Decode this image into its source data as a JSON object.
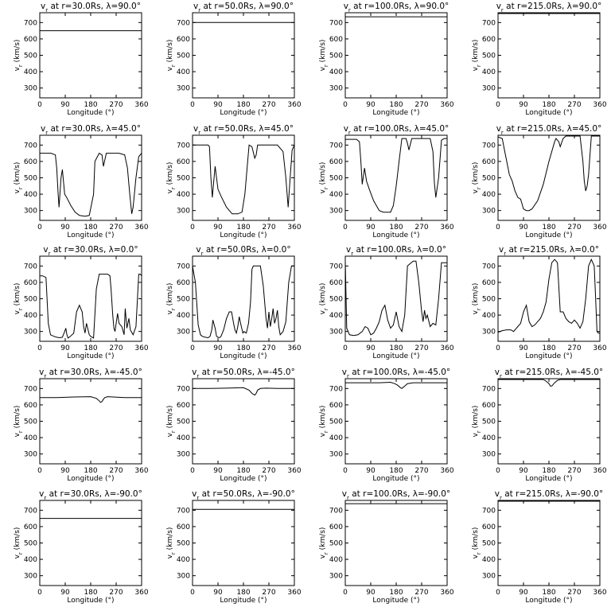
{
  "chart_data": {
    "type": "line",
    "xlabel": "Longitude (°)",
    "ylabel": "v",
    "ylabel_sub": "r",
    "ylabel_units": " (km/s)",
    "xlim": [
      0,
      360
    ],
    "ylim": [
      240,
      760
    ],
    "xticks": [
      "0",
      "90",
      "180",
      "270",
      "360"
    ],
    "yticks": [
      "300",
      "400",
      "500",
      "600",
      "700"
    ],
    "title_prefix": "v",
    "title_sub": "r",
    "title_at": " at r=",
    "title_lambda": "Rs, λ=",
    "title_deg": "°",
    "radii": [
      "30.0",
      "50.0",
      "100.0",
      "215.0"
    ],
    "latitudes": [
      "90.0",
      "45.0",
      "0.0",
      "-45.0",
      "-90.0"
    ],
    "panels": [
      [
        {
          "x": [
            0,
            360
          ],
          "y": [
            650,
            650
          ]
        },
        {
          "x": [
            0,
            360
          ],
          "y": [
            700,
            700
          ]
        },
        {
          "x": [
            0,
            360
          ],
          "y": [
            735,
            735
          ]
        },
        {
          "x": [
            0,
            360
          ],
          "y": [
            755,
            755
          ]
        }
      ],
      [
        {
          "x": [
            0,
            20,
            40,
            55,
            60,
            65,
            68,
            75,
            80,
            88,
            95,
            110,
            125,
            140,
            160,
            175,
            190,
            195,
            210,
            220,
            225,
            235,
            245,
            280,
            300,
            310,
            318,
            325,
            330,
            340,
            350,
            360
          ],
          "y": [
            650,
            650,
            650,
            640,
            560,
            400,
            320,
            500,
            550,
            400,
            380,
            330,
            290,
            270,
            265,
            270,
            400,
            600,
            650,
            640,
            570,
            650,
            650,
            650,
            640,
            560,
            400,
            280,
            320,
            500,
            630,
            650
          ]
        },
        {
          "x": [
            0,
            30,
            55,
            60,
            65,
            70,
            75,
            80,
            90,
            100,
            120,
            140,
            160,
            175,
            185,
            195,
            200,
            210,
            220,
            225,
            230,
            240,
            260,
            300,
            320,
            330,
            338,
            345,
            352,
            360
          ],
          "y": [
            700,
            700,
            700,
            690,
            500,
            380,
            480,
            570,
            430,
            390,
            320,
            280,
            280,
            290,
            400,
            600,
            700,
            690,
            620,
            640,
            700,
            700,
            700,
            700,
            660,
            500,
            320,
            500,
            670,
            700
          ]
        },
        {
          "x": [
            0,
            20,
            40,
            50,
            55,
            60,
            68,
            75,
            85,
            100,
            120,
            135,
            150,
            160,
            170,
            180,
            190,
            200,
            215,
            220,
            225,
            235,
            245,
            260,
            285,
            300,
            310,
            315,
            320,
            330,
            340,
            350,
            360
          ],
          "y": [
            735,
            735,
            735,
            720,
            600,
            460,
            560,
            480,
            430,
            360,
            300,
            290,
            290,
            290,
            330,
            450,
            600,
            740,
            740,
            710,
            670,
            740,
            740,
            740,
            740,
            740,
            660,
            470,
            380,
            500,
            730,
            740,
            740
          ]
        },
        {
          "x": [
            0,
            15,
            25,
            40,
            50,
            60,
            70,
            80,
            90,
            100,
            110,
            120,
            140,
            160,
            180,
            200,
            205,
            215,
            220,
            230,
            240,
            270,
            290,
            300,
            305,
            310,
            315,
            320,
            330,
            360
          ],
          "y": [
            750,
            740,
            650,
            520,
            480,
            420,
            380,
            370,
            310,
            300,
            300,
            310,
            360,
            460,
            600,
            720,
            740,
            720,
            690,
            740,
            755,
            755,
            755,
            600,
            480,
            420,
            450,
            520,
            755,
            755
          ]
        }
      ],
      [
        {
          "x": [
            0,
            10,
            22,
            30,
            38,
            50,
            60,
            70,
            80,
            88,
            92,
            96,
            100,
            108,
            120,
            130,
            140,
            150,
            155,
            160,
            165,
            175,
            180,
            190,
            200,
            210,
            220,
            240,
            248,
            252,
            258,
            262,
            266,
            270,
            275,
            280,
            290,
            298,
            302,
            308,
            315,
            320,
            330,
            340,
            350,
            355,
            360
          ],
          "y": [
            640,
            640,
            630,
            350,
            280,
            270,
            265,
            262,
            265,
            300,
            320,
            280,
            260,
            270,
            290,
            420,
            460,
            420,
            330,
            290,
            350,
            280,
            270,
            260,
            560,
            650,
            650,
            650,
            640,
            560,
            400,
            320,
            300,
            350,
            410,
            350,
            330,
            280,
            440,
            320,
            380,
            310,
            280,
            330,
            650,
            650,
            640
          ]
        },
        {
          "x": [
            0,
            10,
            20,
            28,
            35,
            45,
            55,
            62,
            68,
            72,
            80,
            85,
            90,
            95,
            100,
            110,
            120,
            130,
            138,
            145,
            150,
            155,
            160,
            165,
            170,
            178,
            182,
            190,
            198,
            205,
            210,
            215,
            220,
            240,
            250,
            260,
            265,
            270,
            275,
            280,
            285,
            290,
            295,
            300,
            305,
            310,
            320,
            330,
            340,
            350,
            360
          ],
          "y": [
            700,
            600,
            340,
            280,
            270,
            265,
            262,
            270,
            310,
            370,
            320,
            270,
            265,
            262,
            268,
            310,
            380,
            420,
            420,
            350,
            310,
            290,
            330,
            390,
            350,
            290,
            300,
            290,
            350,
            480,
            680,
            700,
            700,
            700,
            580,
            380,
            320,
            420,
            330,
            380,
            440,
            350,
            380,
            430,
            330,
            280,
            300,
            360,
            600,
            700,
            700
          ]
        },
        {
          "x": [
            0,
            5,
            15,
            30,
            45,
            60,
            70,
            80,
            90,
            100,
            110,
            120,
            130,
            140,
            150,
            160,
            170,
            180,
            190,
            200,
            210,
            220,
            240,
            250,
            260,
            270,
            275,
            280,
            285,
            290,
            300,
            310,
            320,
            330,
            340,
            360
          ],
          "y": [
            730,
            320,
            280,
            275,
            280,
            300,
            330,
            320,
            280,
            290,
            320,
            360,
            430,
            460,
            370,
            320,
            340,
            420,
            330,
            300,
            400,
            700,
            730,
            730,
            600,
            420,
            360,
            430,
            380,
            400,
            330,
            350,
            340,
            500,
            720,
            720
          ]
        },
        {
          "x": [
            0,
            15,
            30,
            45,
            55,
            60,
            70,
            80,
            90,
            100,
            110,
            120,
            130,
            140,
            150,
            160,
            170,
            180,
            190,
            200,
            210,
            220,
            230,
            240,
            250,
            260,
            270,
            280,
            290,
            300,
            310,
            320,
            330,
            340,
            345,
            350,
            355,
            360
          ],
          "y": [
            295,
            305,
            310,
            310,
            300,
            310,
            330,
            350,
            420,
            460,
            360,
            330,
            340,
            360,
            380,
            420,
            480,
            620,
            720,
            740,
            720,
            420,
            420,
            380,
            360,
            350,
            370,
            350,
            320,
            360,
            500,
            700,
            740,
            700,
            500,
            300,
            290,
            290
          ]
        }
      ],
      [
        {
          "x": [
            0,
            60,
            120,
            180,
            200,
            210,
            215,
            220,
            225,
            230,
            240,
            260,
            300,
            360
          ],
          "y": [
            645,
            645,
            648,
            650,
            640,
            625,
            615,
            620,
            635,
            645,
            650,
            648,
            645,
            645
          ]
        },
        {
          "x": [
            0,
            60,
            120,
            180,
            200,
            210,
            220,
            225,
            230,
            240,
            260,
            300,
            360
          ],
          "y": [
            700,
            700,
            702,
            705,
            690,
            670,
            660,
            670,
            690,
            700,
            702,
            700,
            700
          ]
        },
        {
          "x": [
            0,
            60,
            120,
            160,
            175,
            185,
            195,
            200,
            210,
            220,
            240,
            300,
            360
          ],
          "y": [
            735,
            735,
            735,
            738,
            730,
            720,
            705,
            700,
            715,
            730,
            735,
            735,
            735
          ]
        },
        {
          "x": [
            0,
            60,
            120,
            160,
            170,
            180,
            185,
            190,
            200,
            210,
            220,
            260,
            300,
            360
          ],
          "y": [
            755,
            755,
            755,
            755,
            745,
            730,
            715,
            715,
            735,
            750,
            755,
            755,
            755,
            755
          ]
        }
      ],
      [
        {
          "x": [
            0,
            360
          ],
          "y": [
            650,
            650
          ]
        },
        {
          "x": [
            0,
            360
          ],
          "y": [
            705,
            705
          ]
        },
        {
          "x": [
            0,
            360
          ],
          "y": [
            740,
            740
          ]
        },
        {
          "x": [
            0,
            360
          ],
          "y": [
            755,
            755
          ]
        }
      ]
    ]
  }
}
